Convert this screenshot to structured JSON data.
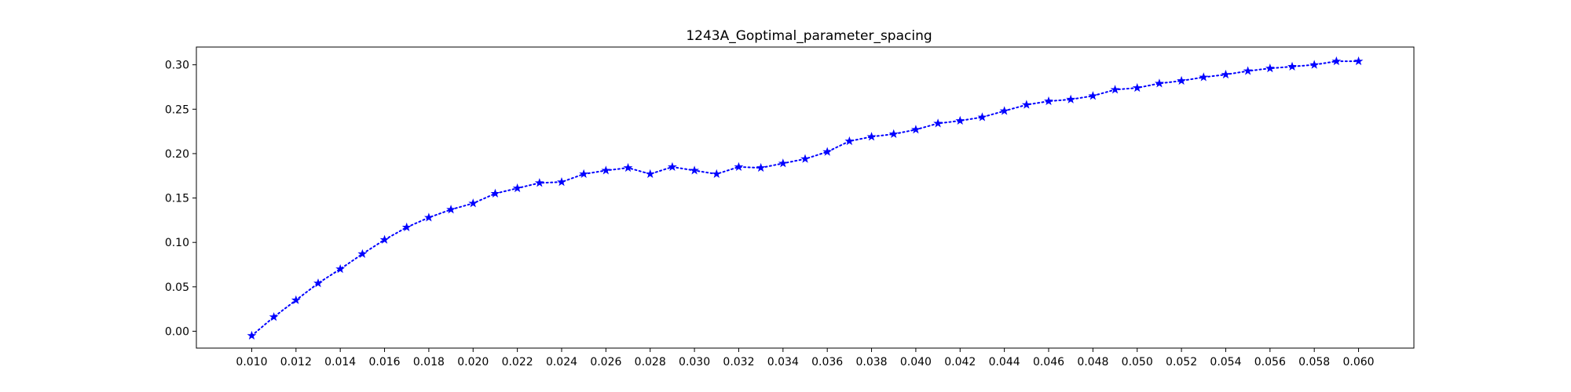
{
  "chart_data": {
    "type": "line",
    "title": "1243A_Goptimal_parameter_spacing",
    "xlabel": "",
    "ylabel": "",
    "xlim": [
      0.0075,
      0.0625
    ],
    "ylim": [
      -0.019,
      0.32
    ],
    "x_ticks": [
      0.01,
      0.012,
      0.014,
      0.016,
      0.018,
      0.02,
      0.022,
      0.024,
      0.026,
      0.028,
      0.03,
      0.032,
      0.034,
      0.036,
      0.038,
      0.04,
      0.042,
      0.044,
      0.046,
      0.048,
      0.05,
      0.052,
      0.054,
      0.056,
      0.058,
      0.06
    ],
    "x_tick_labels": [
      "0.010",
      "0.012",
      "0.014",
      "0.016",
      "0.018",
      "0.020",
      "0.022",
      "0.024",
      "0.026",
      "0.028",
      "0.030",
      "0.032",
      "0.034",
      "0.036",
      "0.038",
      "0.040",
      "0.042",
      "0.044",
      "0.046",
      "0.048",
      "0.050",
      "0.052",
      "0.054",
      "0.056",
      "0.058",
      "0.060"
    ],
    "y_ticks": [
      0.0,
      0.05,
      0.1,
      0.15,
      0.2,
      0.25,
      0.3
    ],
    "y_tick_labels": [
      "0.00",
      "0.05",
      "0.10",
      "0.15",
      "0.20",
      "0.25",
      "0.30"
    ],
    "grid": false,
    "series": [
      {
        "color": "#0000ff",
        "line_style": "dotted",
        "marker": "star",
        "x": [
          0.01,
          0.011,
          0.012,
          0.013,
          0.014,
          0.015,
          0.016,
          0.017,
          0.018,
          0.019,
          0.02,
          0.021,
          0.022,
          0.023,
          0.024,
          0.025,
          0.026,
          0.027,
          0.028,
          0.029,
          0.03,
          0.031,
          0.032,
          0.033,
          0.034,
          0.035,
          0.036,
          0.037,
          0.038,
          0.039,
          0.04,
          0.041,
          0.042,
          0.043,
          0.044,
          0.045,
          0.046,
          0.047,
          0.048,
          0.049,
          0.05,
          0.051,
          0.052,
          0.053,
          0.054,
          0.055,
          0.056,
          0.057,
          0.058,
          0.059,
          0.06
        ],
        "y": [
          -0.005,
          0.016,
          0.035,
          0.054,
          0.07,
          0.087,
          0.103,
          0.117,
          0.128,
          0.137,
          0.144,
          0.155,
          0.161,
          0.167,
          0.168,
          0.177,
          0.181,
          0.184,
          0.177,
          0.185,
          0.181,
          0.177,
          0.185,
          0.184,
          0.189,
          0.194,
          0.202,
          0.214,
          0.219,
          0.222,
          0.227,
          0.234,
          0.237,
          0.241,
          0.248,
          0.255,
          0.259,
          0.261,
          0.265,
          0.272,
          0.274,
          0.279,
          0.282,
          0.286,
          0.289,
          0.293,
          0.296,
          0.298,
          0.3,
          0.304,
          0.304
        ]
      }
    ]
  }
}
